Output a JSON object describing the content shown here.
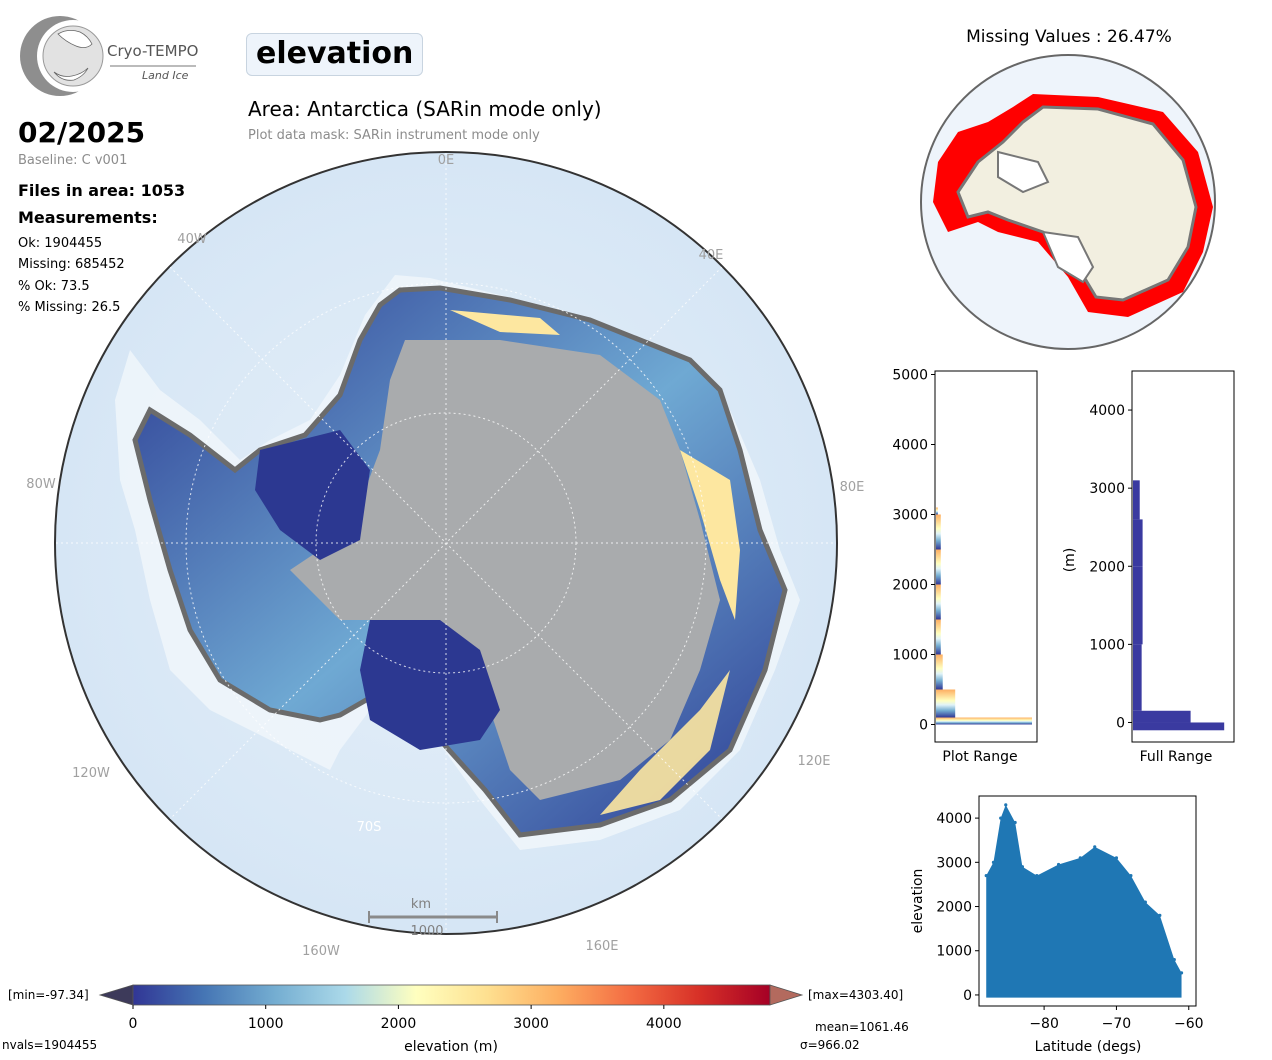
{
  "header": {
    "logo_text": "Cryo-TEMPO",
    "logo_subtext": "Land Ice",
    "variable": "elevation",
    "area_title": "Area: Antarctica (SARin mode only)",
    "mask_note": "Plot data mask: SARin instrument mode only"
  },
  "summary": {
    "date": "02/2025",
    "baseline": "Baseline: C v001",
    "files": "Files in area: 1053",
    "measurements_label": "Measurements:",
    "ok": "Ok: 1904455",
    "missing": "Missing: 685452",
    "pct_ok": "% Ok: 73.5",
    "pct_missing": "% Missing: 26.5"
  },
  "map": {
    "longitude_labels": [
      "0E",
      "40E",
      "80E",
      "120E",
      "160E",
      "160W",
      "120W",
      "80W",
      "40W"
    ],
    "latitude_label": "70S",
    "scalebar_unit": "km",
    "scalebar_value": "1000"
  },
  "colorbar": {
    "label": "elevation (m)",
    "ticks": [
      "0",
      "1000",
      "2000",
      "3000",
      "4000"
    ],
    "min_text": "[min=-97.34]",
    "max_text": "[max=4303.40]",
    "mean_text": "mean=1061.46",
    "sigma_text": "σ=966.02",
    "nvals_text": "nvals=1904455",
    "colors": [
      "#313695",
      "#4575b4",
      "#74add1",
      "#abd9e9",
      "#ffffbf",
      "#fee090",
      "#fdae61",
      "#f46d43",
      "#d73027",
      "#a50026"
    ]
  },
  "missing_map": {
    "title": "Missing Values : 26.47%",
    "missing_color": "#ff0000",
    "land_color": "#f2efe0"
  },
  "chart_data": [
    {
      "type": "bar",
      "orientation": "horizontal",
      "name": "histogram-plot-range",
      "xlabel": "Plot Range",
      "ylabel": "",
      "ylim": [
        -250,
        5050
      ],
      "y_ticks": [
        "0",
        "1000",
        "2000",
        "3000",
        "4000",
        "5000"
      ],
      "bins": [
        {
          "y0": 0,
          "y1": 100,
          "count": 1.0
        },
        {
          "y0": 100,
          "y1": 500,
          "count": 0.2
        },
        {
          "y0": 500,
          "y1": 1000,
          "count": 0.07
        },
        {
          "y0": 1000,
          "y1": 1500,
          "count": 0.05
        },
        {
          "y0": 1500,
          "y1": 2000,
          "count": 0.05
        },
        {
          "y0": 2000,
          "y1": 2500,
          "count": 0.05
        },
        {
          "y0": 2500,
          "y1": 3000,
          "count": 0.05
        },
        {
          "y0": 3000,
          "y1": 3100,
          "count": 0.02
        }
      ]
    },
    {
      "type": "bar",
      "orientation": "horizontal",
      "name": "histogram-full-range",
      "xlabel": "Full Range",
      "ylabel": "(m)",
      "ylim": [
        -250,
        4500
      ],
      "y_ticks": [
        "0",
        "1000",
        "2000",
        "3000",
        "4000"
      ],
      "bar_color": "#3a3aa0",
      "bins": [
        {
          "y0": -100,
          "y1": 0,
          "count": 0.95
        },
        {
          "y0": 0,
          "y1": 150,
          "count": 0.6
        },
        {
          "y0": 150,
          "y1": 1000,
          "count": 0.09
        },
        {
          "y0": 1000,
          "y1": 2000,
          "count": 0.1
        },
        {
          "y0": 2000,
          "y1": 2600,
          "count": 0.1
        },
        {
          "y0": 2600,
          "y1": 3100,
          "count": 0.07
        }
      ]
    },
    {
      "type": "scatter",
      "name": "elevation-vs-latitude",
      "xlabel": "Latitude (degs)",
      "ylabel": "elevation",
      "xlim": [
        -89,
        -59
      ],
      "ylim": [
        -250,
        4500
      ],
      "x_ticks": [
        "−80",
        "−70",
        "−60"
      ],
      "y_ticks": [
        "0",
        "1000",
        "2000",
        "3000",
        "4000"
      ],
      "color": "#1f77b4",
      "envelope": [
        {
          "lat": -88.0,
          "max": 2700
        },
        {
          "lat": -87.0,
          "max": 3000
        },
        {
          "lat": -86.0,
          "max": 4000
        },
        {
          "lat": -85.3,
          "max": 4300
        },
        {
          "lat": -84.0,
          "max": 3900
        },
        {
          "lat": -83.0,
          "max": 2900
        },
        {
          "lat": -81.0,
          "max": 2700
        },
        {
          "lat": -78.0,
          "max": 2950
        },
        {
          "lat": -75.0,
          "max": 3100
        },
        {
          "lat": -73.0,
          "max": 3350
        },
        {
          "lat": -70.0,
          "max": 3100
        },
        {
          "lat": -68.0,
          "max": 2700
        },
        {
          "lat": -66.0,
          "max": 2100
        },
        {
          "lat": -64.0,
          "max": 1800
        },
        {
          "lat": -62.0,
          "max": 800
        },
        {
          "lat": -61.0,
          "max": 500
        }
      ]
    }
  ]
}
